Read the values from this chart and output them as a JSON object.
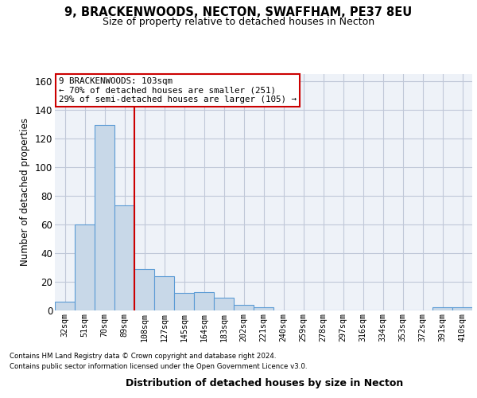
{
  "title_line1": "9, BRACKENWOODS, NECTON, SWAFFHAM, PE37 8EU",
  "title_line2": "Size of property relative to detached houses in Necton",
  "xlabel": "Distribution of detached houses by size in Necton",
  "ylabel": "Number of detached properties",
  "categories": [
    "32sqm",
    "51sqm",
    "70sqm",
    "89sqm",
    "108sqm",
    "127sqm",
    "145sqm",
    "164sqm",
    "183sqm",
    "202sqm",
    "221sqm",
    "240sqm",
    "259sqm",
    "278sqm",
    "297sqm",
    "316sqm",
    "334sqm",
    "353sqm",
    "372sqm",
    "391sqm",
    "410sqm"
  ],
  "values": [
    6,
    60,
    129,
    73,
    29,
    24,
    12,
    13,
    9,
    4,
    2,
    0,
    0,
    0,
    0,
    0,
    0,
    0,
    0,
    2,
    2
  ],
  "bar_color": "#c8d8e8",
  "bar_edge_color": "#5b9bd5",
  "vline_x": 3.5,
  "vline_color": "#cc0000",
  "ylim": [
    0,
    165
  ],
  "annotation_text": "9 BRACKENWOODS: 103sqm\n← 70% of detached houses are smaller (251)\n29% of semi-detached houses are larger (105) →",
  "annotation_box_color": "#cc0000",
  "footnote1": "Contains HM Land Registry data © Crown copyright and database right 2024.",
  "footnote2": "Contains public sector information licensed under the Open Government Licence v3.0.",
  "grid_color": "#c0c8d8",
  "bg_color": "#eef2f8"
}
